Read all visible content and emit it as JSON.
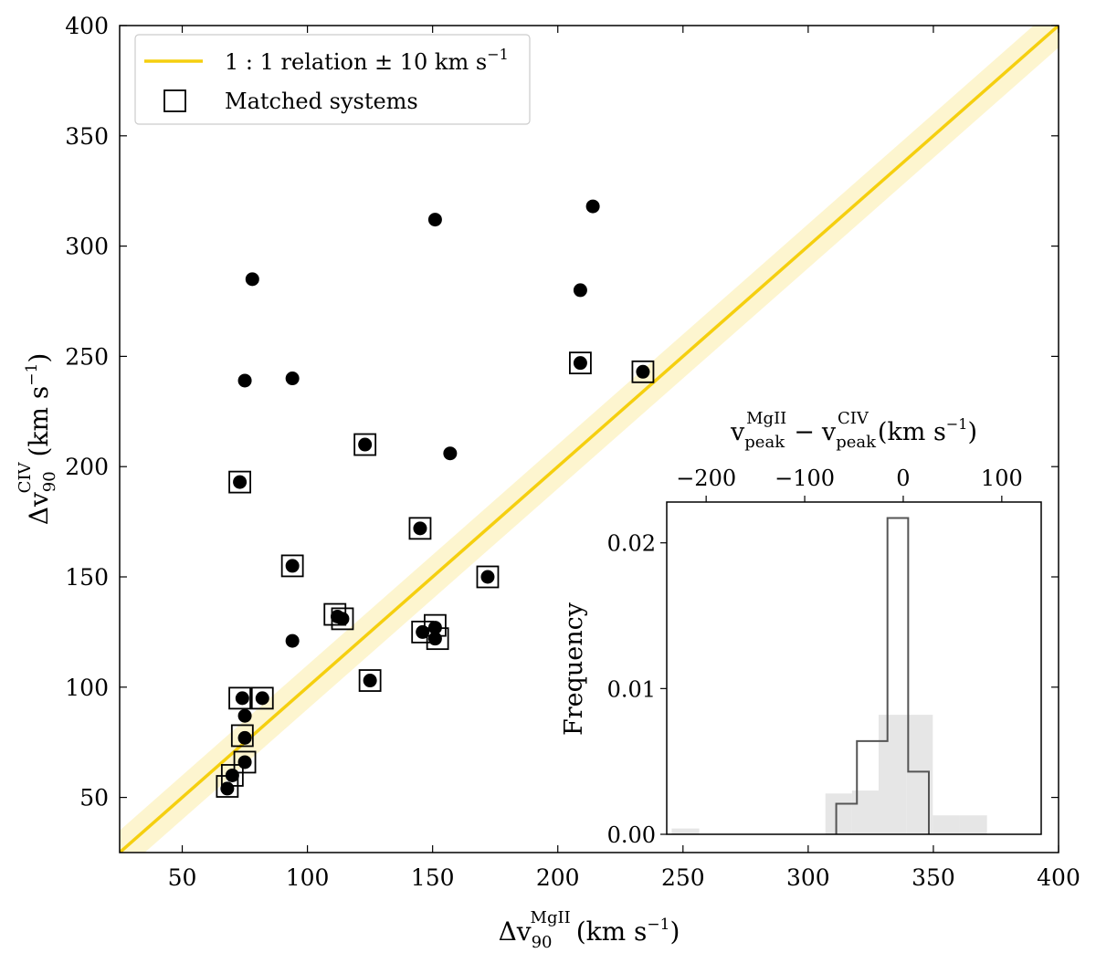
{
  "chart_data": [
    {
      "type": "scatter",
      "name": "main",
      "xlabel": {
        "base": "Δv",
        "sub": "90",
        "sup": "MgII",
        "unit": "(km s",
        "unit_exp": "−1",
        "close": ")"
      },
      "ylabel": {
        "base": "Δv",
        "sub": "90",
        "sup": "CIV",
        "unit": "(km s",
        "unit_exp": "−1",
        "close": ")"
      },
      "xlim": [
        25,
        400
      ],
      "ylim": [
        25,
        400
      ],
      "xticks": [
        50,
        100,
        150,
        200,
        250,
        300,
        350,
        400
      ],
      "yticks": [
        50,
        100,
        150,
        200,
        250,
        300,
        350,
        400
      ],
      "colors": {
        "line": "#f5cf0f",
        "band": "#fdf5cf",
        "points": "#000000"
      },
      "band_halfwidth": 10,
      "legend": {
        "position": "top-left",
        "line_label": "1 : 1 relation ± 10 km s",
        "line_label_exp": "−1",
        "marker_label": "Matched systems"
      },
      "points": [
        {
          "x": 214,
          "y": 318
        },
        {
          "x": 151,
          "y": 312
        },
        {
          "x": 78,
          "y": 285
        },
        {
          "x": 209,
          "y": 280
        },
        {
          "x": 94,
          "y": 240
        },
        {
          "x": 75,
          "y": 239
        },
        {
          "x": 157,
          "y": 206
        },
        {
          "x": 94,
          "y": 121
        },
        {
          "x": 75,
          "y": 87
        },
        {
          "x": 68,
          "y": 54
        },
        {
          "x": 70,
          "y": 60
        },
        {
          "x": 146,
          "y": 125
        },
        {
          "x": 209,
          "y": 247
        },
        {
          "x": 234,
          "y": 243
        },
        {
          "x": 123,
          "y": 210
        },
        {
          "x": 73,
          "y": 193
        },
        {
          "x": 145,
          "y": 172
        },
        {
          "x": 94,
          "y": 155
        },
        {
          "x": 172,
          "y": 150
        },
        {
          "x": 112,
          "y": 132
        },
        {
          "x": 114,
          "y": 131
        },
        {
          "x": 151,
          "y": 127
        },
        {
          "x": 151,
          "y": 122
        },
        {
          "x": 125,
          "y": 103
        },
        {
          "x": 74,
          "y": 95
        },
        {
          "x": 82,
          "y": 95
        },
        {
          "x": 75,
          "y": 77
        },
        {
          "x": 75,
          "y": 66
        }
      ],
      "matched": [
        {
          "x": 209,
          "y": 247
        },
        {
          "x": 234,
          "y": 243
        },
        {
          "x": 123,
          "y": 210
        },
        {
          "x": 73,
          "y": 193
        },
        {
          "x": 145,
          "y": 172
        },
        {
          "x": 94,
          "y": 155
        },
        {
          "x": 172,
          "y": 150
        },
        {
          "x": 111,
          "y": 133
        },
        {
          "x": 114,
          "y": 131
        },
        {
          "x": 146,
          "y": 125
        },
        {
          "x": 151,
          "y": 128
        },
        {
          "x": 152,
          "y": 122
        },
        {
          "x": 125,
          "y": 103
        },
        {
          "x": 73,
          "y": 95
        },
        {
          "x": 82,
          "y": 95
        },
        {
          "x": 74,
          "y": 78
        },
        {
          "x": 75,
          "y": 66
        },
        {
          "x": 70,
          "y": 60
        },
        {
          "x": 68,
          "y": 55
        }
      ]
    },
    {
      "type": "histogram",
      "name": "inset",
      "ylabel": "Frequency",
      "xlabel_top": {
        "a": "v",
        "a_sup": "MgII",
        "a_sub": "peak",
        "minus": "−",
        "b": "v",
        "b_sup": "CIV",
        "b_sub": "peak",
        "unit": "(km s",
        "unit_exp": "−1",
        "close": ")"
      },
      "xlim": [
        -240,
        140
      ],
      "ylim": [
        0,
        0.0228
      ],
      "xticks": [
        {
          "v": -200,
          "label": "−200"
        },
        {
          "v": -100,
          "label": "−100"
        },
        {
          "v": 0,
          "label": "0"
        },
        {
          "v": 100,
          "label": "100"
        }
      ],
      "yticks": [
        {
          "v": 0,
          "label": "0.00"
        },
        {
          "v": 0.01,
          "label": "0.01"
        },
        {
          "v": 0.02,
          "label": "0.02"
        }
      ],
      "colors": {
        "filled": "#e6e6e6",
        "step": "#555555"
      },
      "filled_bins": [
        {
          "x0": -235,
          "x1": -207,
          "y": 0.0004
        },
        {
          "x0": -207,
          "x1": -79,
          "y": 0.0
        },
        {
          "x0": -79,
          "x1": -52,
          "y": 0.0028
        },
        {
          "x0": -52,
          "x1": -25,
          "y": 0.003
        },
        {
          "x0": -25,
          "x1": 3,
          "y": 0.0082
        },
        {
          "x0": 3,
          "x1": 30,
          "y": 0.0082
        },
        {
          "x0": 30,
          "x1": 57,
          "y": 0.0013
        },
        {
          "x0": 57,
          "x1": 85,
          "y": 0.0013
        }
      ],
      "step_bins": [
        {
          "x0": -68,
          "x1": -58,
          "y": 0.0021
        },
        {
          "x0": -58,
          "x1": -47,
          "y": 0.0021
        },
        {
          "x0": -47,
          "x1": -37,
          "y": 0.0064
        },
        {
          "x0": -37,
          "x1": -26,
          "y": 0.0064
        },
        {
          "x0": -26,
          "x1": -16,
          "y": 0.0064
        },
        {
          "x0": -16,
          "x1": -5,
          "y": 0.0217
        },
        {
          "x0": -5,
          "x1": 5,
          "y": 0.0217
        },
        {
          "x0": 5,
          "x1": 16,
          "y": 0.0043
        },
        {
          "x0": 16,
          "x1": 26,
          "y": 0.0043
        }
      ]
    }
  ]
}
